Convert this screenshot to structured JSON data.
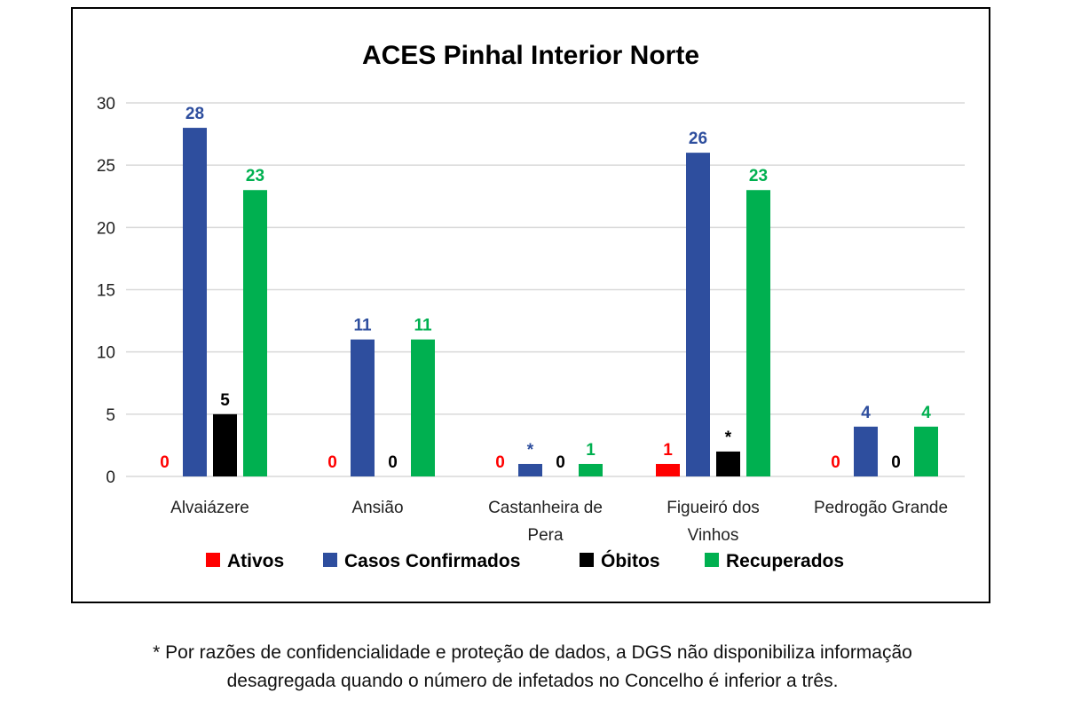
{
  "colors": {
    "ativos": "#ff0000",
    "casos_confirmados": "#2e4e9e",
    "obitos": "#000000",
    "recuperados": "#00b050",
    "axis_text": "#222222",
    "grid": "#d9d9d9"
  },
  "chart_data": {
    "type": "bar",
    "title": "ACES Pinhal Interior Norte",
    "categories": [
      [
        "Alvaiázere"
      ],
      [
        "Ansião"
      ],
      [
        "Castanheira de",
        "Pera"
      ],
      [
        "Figueiró dos",
        "Vinhos"
      ],
      [
        "Pedrogão Grande"
      ]
    ],
    "series": [
      {
        "name": "Ativos",
        "values": [
          0,
          0,
          0,
          1,
          0
        ],
        "labels": [
          "0",
          "0",
          "0",
          "1",
          "0"
        ]
      },
      {
        "name": "Casos Confirmados",
        "values": [
          28,
          11,
          1,
          26,
          4
        ],
        "labels": [
          "28",
          "11",
          "*",
          "26",
          "4"
        ]
      },
      {
        "name": "Óbitos",
        "values": [
          5,
          0,
          0,
          2,
          0
        ],
        "labels": [
          "5",
          "0",
          "0",
          "*",
          "0"
        ]
      },
      {
        "name": "Recuperados",
        "values": [
          23,
          11,
          1,
          23,
          4
        ],
        "labels": [
          "23",
          "11",
          "1",
          "23",
          "4"
        ]
      }
    ],
    "ylim": [
      0,
      30
    ],
    "yticks": [
      0,
      5,
      10,
      15,
      20,
      25,
      30
    ],
    "grid": true,
    "legend_position": "bottom"
  },
  "footnote": {
    "line1": "* Por razões de confidencialidade e proteção de dados, a DGS não disponibiliza informação",
    "line2": "desagregada quando o número de infetados no Concelho é inferior a três."
  }
}
